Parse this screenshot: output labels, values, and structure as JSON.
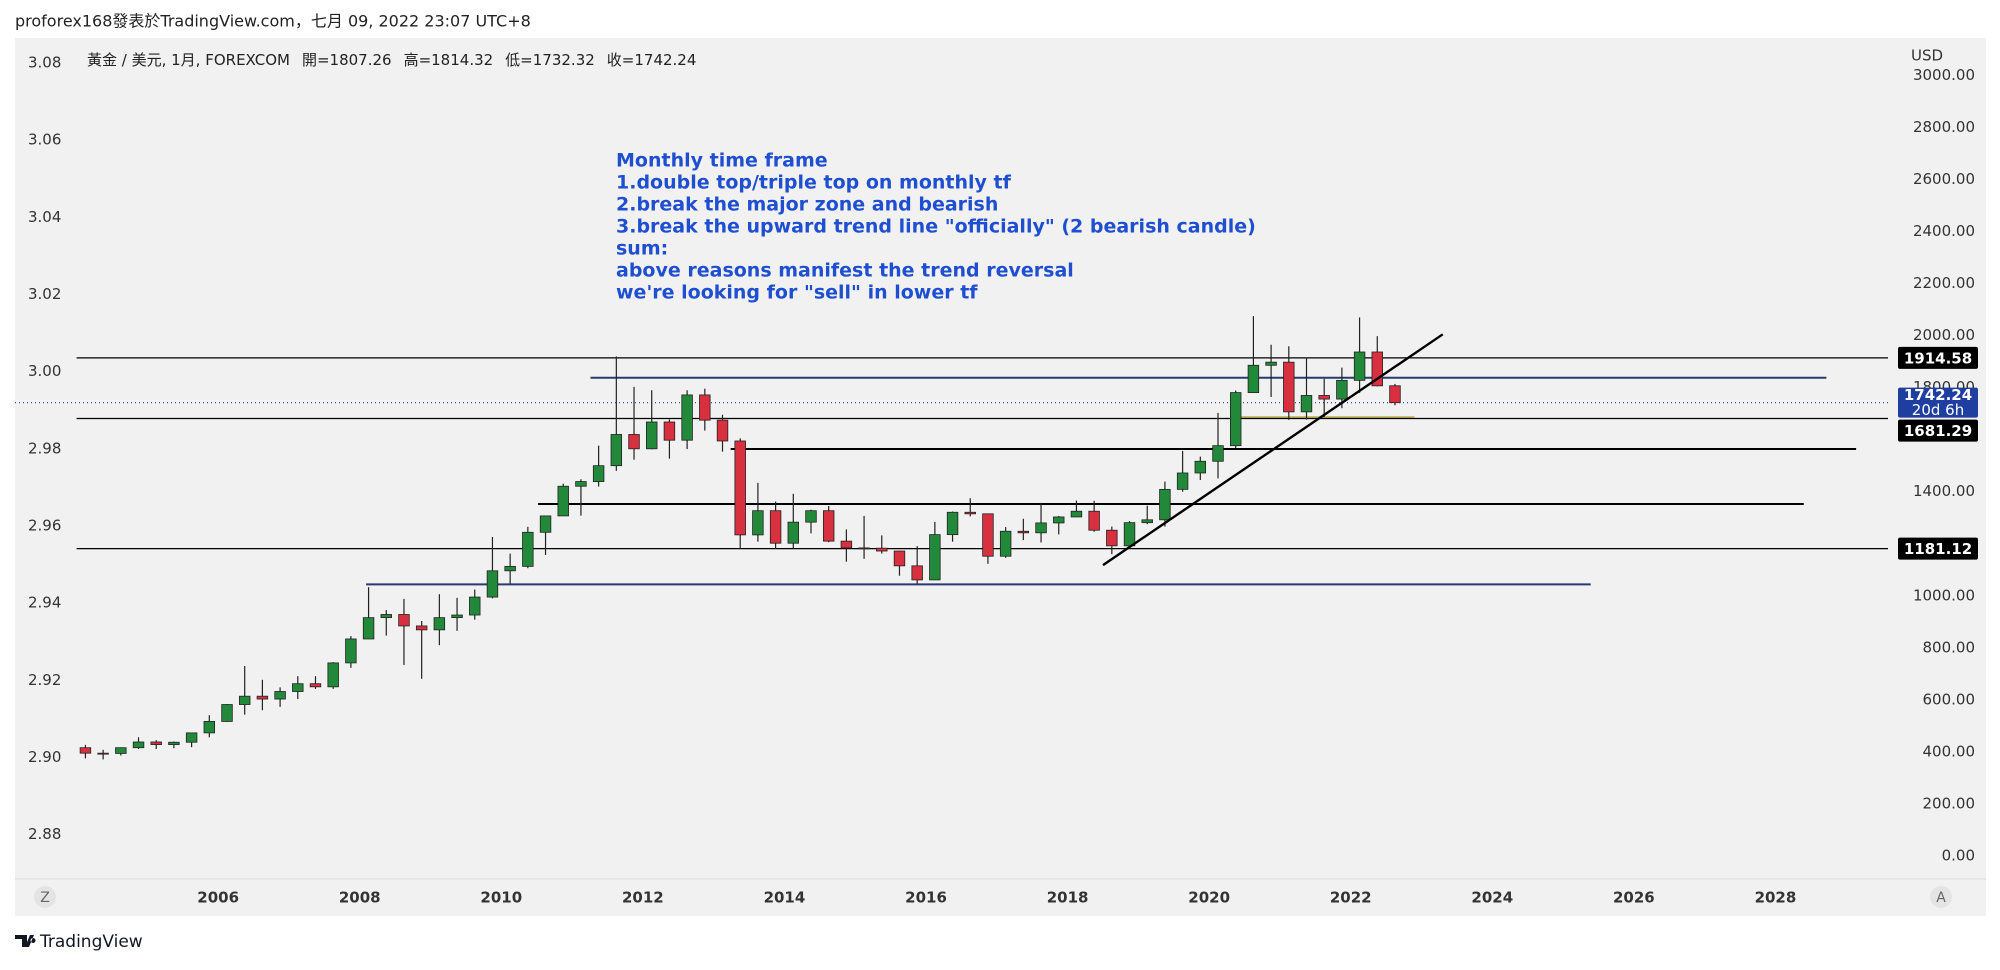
{
  "header": "proforex168發表於TradingView.com，七月 09, 2022 23:07 UTC+8",
  "chart_data": {
    "type": "candlestick",
    "symbol": "黃金 / 美元, 1月, FOREXCOM",
    "ohlc_labels": [
      "開=",
      "高=",
      "低=",
      "收="
    ],
    "currency": "USD",
    "annotation": [
      "Monthly time frame",
      "1.double top/triple top on monthly tf",
      "2.break the major zone and bearish",
      "3.break the upward trend line \"officially\" (2 bearish candle)",
      "sum:",
      "above reasons manifest the trend reversal",
      "we're looking for \"sell\" in lower tf"
    ],
    "annotation_color": "#1f4fd1",
    "x": [
      2004.0,
      2004.25,
      2004.5,
      2004.75,
      2005.0,
      2005.25,
      2005.5,
      2005.75,
      2006.0,
      2006.25,
      2006.5,
      2006.75,
      2007.0,
      2007.25,
      2007.5,
      2007.75,
      2008.0,
      2008.25,
      2008.5,
      2008.75,
      2009.0,
      2009.25,
      2009.5,
      2009.75,
      2010.0,
      2010.25,
      2010.5,
      2010.75,
      2011.0,
      2011.25,
      2011.5,
      2011.75,
      2012.0,
      2012.25,
      2012.5,
      2012.75,
      2013.0,
      2013.25,
      2013.5,
      2013.75,
      2014.0,
      2014.25,
      2014.5,
      2014.75,
      2015.0,
      2015.25,
      2015.5,
      2015.75,
      2016.0,
      2016.25,
      2016.5,
      2016.75,
      2017.0,
      2017.25,
      2017.5,
      2017.75,
      2018.0,
      2018.25,
      2018.5,
      2018.75,
      2019.0,
      2019.25,
      2019.5,
      2019.75,
      2020.0,
      2020.25,
      2020.5,
      2020.75,
      2021.0,
      2021.25,
      2021.5,
      2021.75,
      2022.0,
      2022.25,
      2022.5
    ],
    "open": [
      416,
      395,
      394,
      416,
      438,
      428,
      437,
      473,
      517,
      582,
      614,
      603,
      632,
      662,
      650,
      742,
      834,
      916,
      928,
      884,
      869,
      916,
      926,
      995,
      1096,
      1113,
      1244,
      1307,
      1421,
      1439,
      1500,
      1620,
      1565,
      1668,
      1598,
      1772,
      1675,
      1595,
      1234,
      1327,
      1202,
      1283,
      1327,
      1210,
      1184,
      1183,
      1172,
      1115,
      1061,
      1235,
      1321,
      1315,
      1152,
      1248,
      1242,
      1280,
      1303,
      1325,
      1252,
      1192,
      1281,
      1292,
      1409,
      1472,
      1517,
      1577,
      1781,
      1886,
      1898,
      1707,
      1770,
      1756,
      1828,
      1937,
      1807.26
    ],
    "high": [
      427,
      408,
      417,
      456,
      445,
      440,
      474,
      541,
      584,
      730,
      677,
      648,
      691,
      691,
      745,
      845,
      1033,
      945,
      988,
      903,
      1006,
      992,
      1024,
      1226,
      1162,
      1265,
      1307,
      1431,
      1448,
      1577,
      1920,
      1803,
      1790,
      1678,
      1790,
      1796,
      1696,
      1605,
      1434,
      1362,
      1392,
      1331,
      1345,
      1255,
      1307,
      1232,
      1173,
      1191,
      1284,
      1324,
      1375,
      1316,
      1264,
      1296,
      1357,
      1307,
      1366,
      1365,
      1266,
      1287,
      1346,
      1439,
      1557,
      1535,
      1703,
      1789,
      2075,
      1965,
      1959,
      1916,
      1834,
      1877,
      2070,
      1998,
      1814.32
    ],
    "low": [
      375,
      371,
      386,
      411,
      411,
      414,
      418,
      456,
      515,
      543,
      560,
      573,
      603,
      642,
      642,
      723,
      833,
      847,
      734,
      681,
      810,
      865,
      908,
      990,
      1045,
      1106,
      1157,
      1307,
      1308,
      1420,
      1480,
      1523,
      1563,
      1527,
      1564,
      1635,
      1554,
      1180,
      1208,
      1180,
      1182,
      1240,
      1206,
      1131,
      1142,
      1162,
      1077,
      1046,
      1061,
      1208,
      1305,
      1123,
      1146,
      1214,
      1205,
      1236,
      1303,
      1246,
      1160,
      1180,
      1275,
      1266,
      1400,
      1445,
      1451,
      1568,
      1781,
      1764,
      1676,
      1677,
      1687,
      1721,
      1780,
      1805,
      1732.32
    ],
    "close": [
      395,
      394,
      416,
      438,
      428,
      437,
      473,
      517,
      582,
      614,
      603,
      632,
      662,
      650,
      742,
      834,
      916,
      928,
      884,
      869,
      916,
      926,
      995,
      1096,
      1113,
      1244,
      1307,
      1421,
      1439,
      1500,
      1620,
      1565,
      1668,
      1598,
      1772,
      1675,
      1595,
      1234,
      1327,
      1202,
      1283,
      1327,
      1210,
      1184,
      1183,
      1172,
      1115,
      1061,
      1235,
      1321,
      1315,
      1152,
      1248,
      1242,
      1280,
      1303,
      1325,
      1252,
      1192,
      1281,
      1292,
      1409,
      1472,
      1517,
      1577,
      1781,
      1886,
      1898,
      1707,
      1770,
      1756,
      1828,
      1937,
      1807,
      1742.24
    ],
    "up_color": "#22893a",
    "down_color": "#d8303f",
    "xlim": [
      2003.13,
      2029.59
    ],
    "xticks": [
      2006,
      2008,
      2010,
      2012,
      2014,
      2016,
      2018,
      2020,
      2022,
      2024,
      2026,
      2028
    ],
    "ylim": [
      -81,
      3144
    ],
    "yticks": [
      {
        "value": 0,
        "label": "0.00"
      },
      {
        "value": 200,
        "label": "200.00"
      },
      {
        "value": 400,
        "label": "400.00"
      },
      {
        "value": 600,
        "label": "600.00"
      },
      {
        "value": 800,
        "label": "800.00"
      },
      {
        "value": 1000,
        "label": "1000.00"
      },
      {
        "value": 1400,
        "label": "1400.00"
      },
      {
        "value": 1800,
        "label": "1800.00"
      },
      {
        "value": 2000,
        "label": "2000.00"
      },
      {
        "value": 2200,
        "label": "2200.00"
      },
      {
        "value": 2400,
        "label": "2400.00"
      },
      {
        "value": 2600,
        "label": "2600.00"
      },
      {
        "value": 2800,
        "label": "2800.00"
      },
      {
        "value": 3000,
        "label": "3000.00"
      }
    ],
    "y2lim": [
      2.869,
      3.0865
    ],
    "y2ticks": [
      3.08,
      3.06,
      3.04,
      3.02,
      {
        "value": 3.0,
        "label": "3.00"
      },
      2.98,
      2.96,
      2.94,
      2.92,
      {
        "value": 2.9,
        "label": "2.90"
      },
      2.88
    ],
    "levels": [
      {
        "value": 1914.58,
        "x": [
          2004.0,
          2029.59
        ],
        "color": "#000000",
        "tag": true
      },
      {
        "value": 1838,
        "x": [
          2011.26,
          2028.72
        ],
        "color": "#2a3a6e"
      },
      {
        "value": 1686,
        "x": [
          2020.4,
          2022.9
        ],
        "color": "#bfae55"
      },
      {
        "value": 1681.29,
        "x": [
          2004.0,
          2029.59
        ],
        "color": "#000000",
        "tag": true
      },
      {
        "value": 1564,
        "x": [
          2013.24,
          2029.14
        ],
        "color": "#000000"
      },
      {
        "value": 1353,
        "x": [
          2010.52,
          2028.4
        ],
        "color": "#000000"
      },
      {
        "value": 1181.12,
        "x": [
          2004.0,
          2029.59
        ],
        "color": "#000000",
        "tag": true
      },
      {
        "value": 1044,
        "x": [
          2008.09,
          2025.39
        ],
        "color": "#2a3a6e"
      }
    ],
    "trendline": {
      "x": [
        2018.5,
        2023.3
      ],
      "y": [
        1118,
        2005
      ],
      "color": "#000000"
    },
    "countdown": "20d 6h",
    "last_price_color": "#1e3fa0"
  },
  "corner_buttons": [
    "Z",
    "A"
  ],
  "footer": "TradingView"
}
